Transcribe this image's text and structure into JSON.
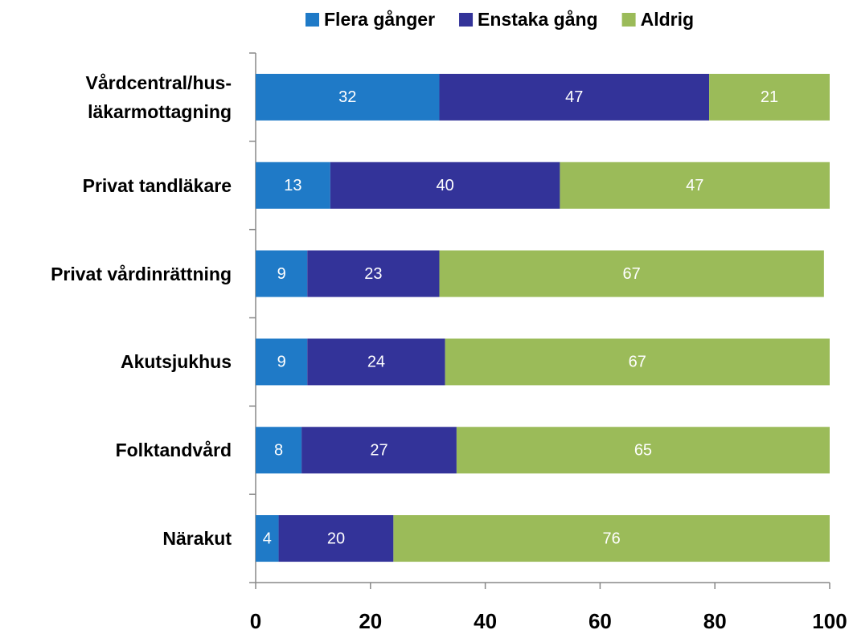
{
  "chart_data": {
    "type": "stacked_bar_horizontal",
    "categories": [
      "Vårdcentral/hus-\nläkarmottagning",
      "Privat tandläkare",
      "Privat vårdinrättning",
      "Akutsjukhus",
      "Folktandvård",
      "Närakut"
    ],
    "series": [
      {
        "name": "Flera gånger",
        "color": "#1f7ac7",
        "values": [
          32,
          13,
          9,
          9,
          8,
          4
        ]
      },
      {
        "name": "Enstaka gång",
        "color": "#333399",
        "values": [
          47,
          40,
          23,
          24,
          27,
          20
        ]
      },
      {
        "name": "Aldrig",
        "color": "#9bbb59",
        "values": [
          21,
          47,
          67,
          67,
          65,
          76
        ]
      }
    ],
    "xlim": [
      0,
      100
    ],
    "xticks": [
      0,
      20,
      40,
      60,
      80,
      100
    ],
    "legend": "top",
    "grid": false
  }
}
